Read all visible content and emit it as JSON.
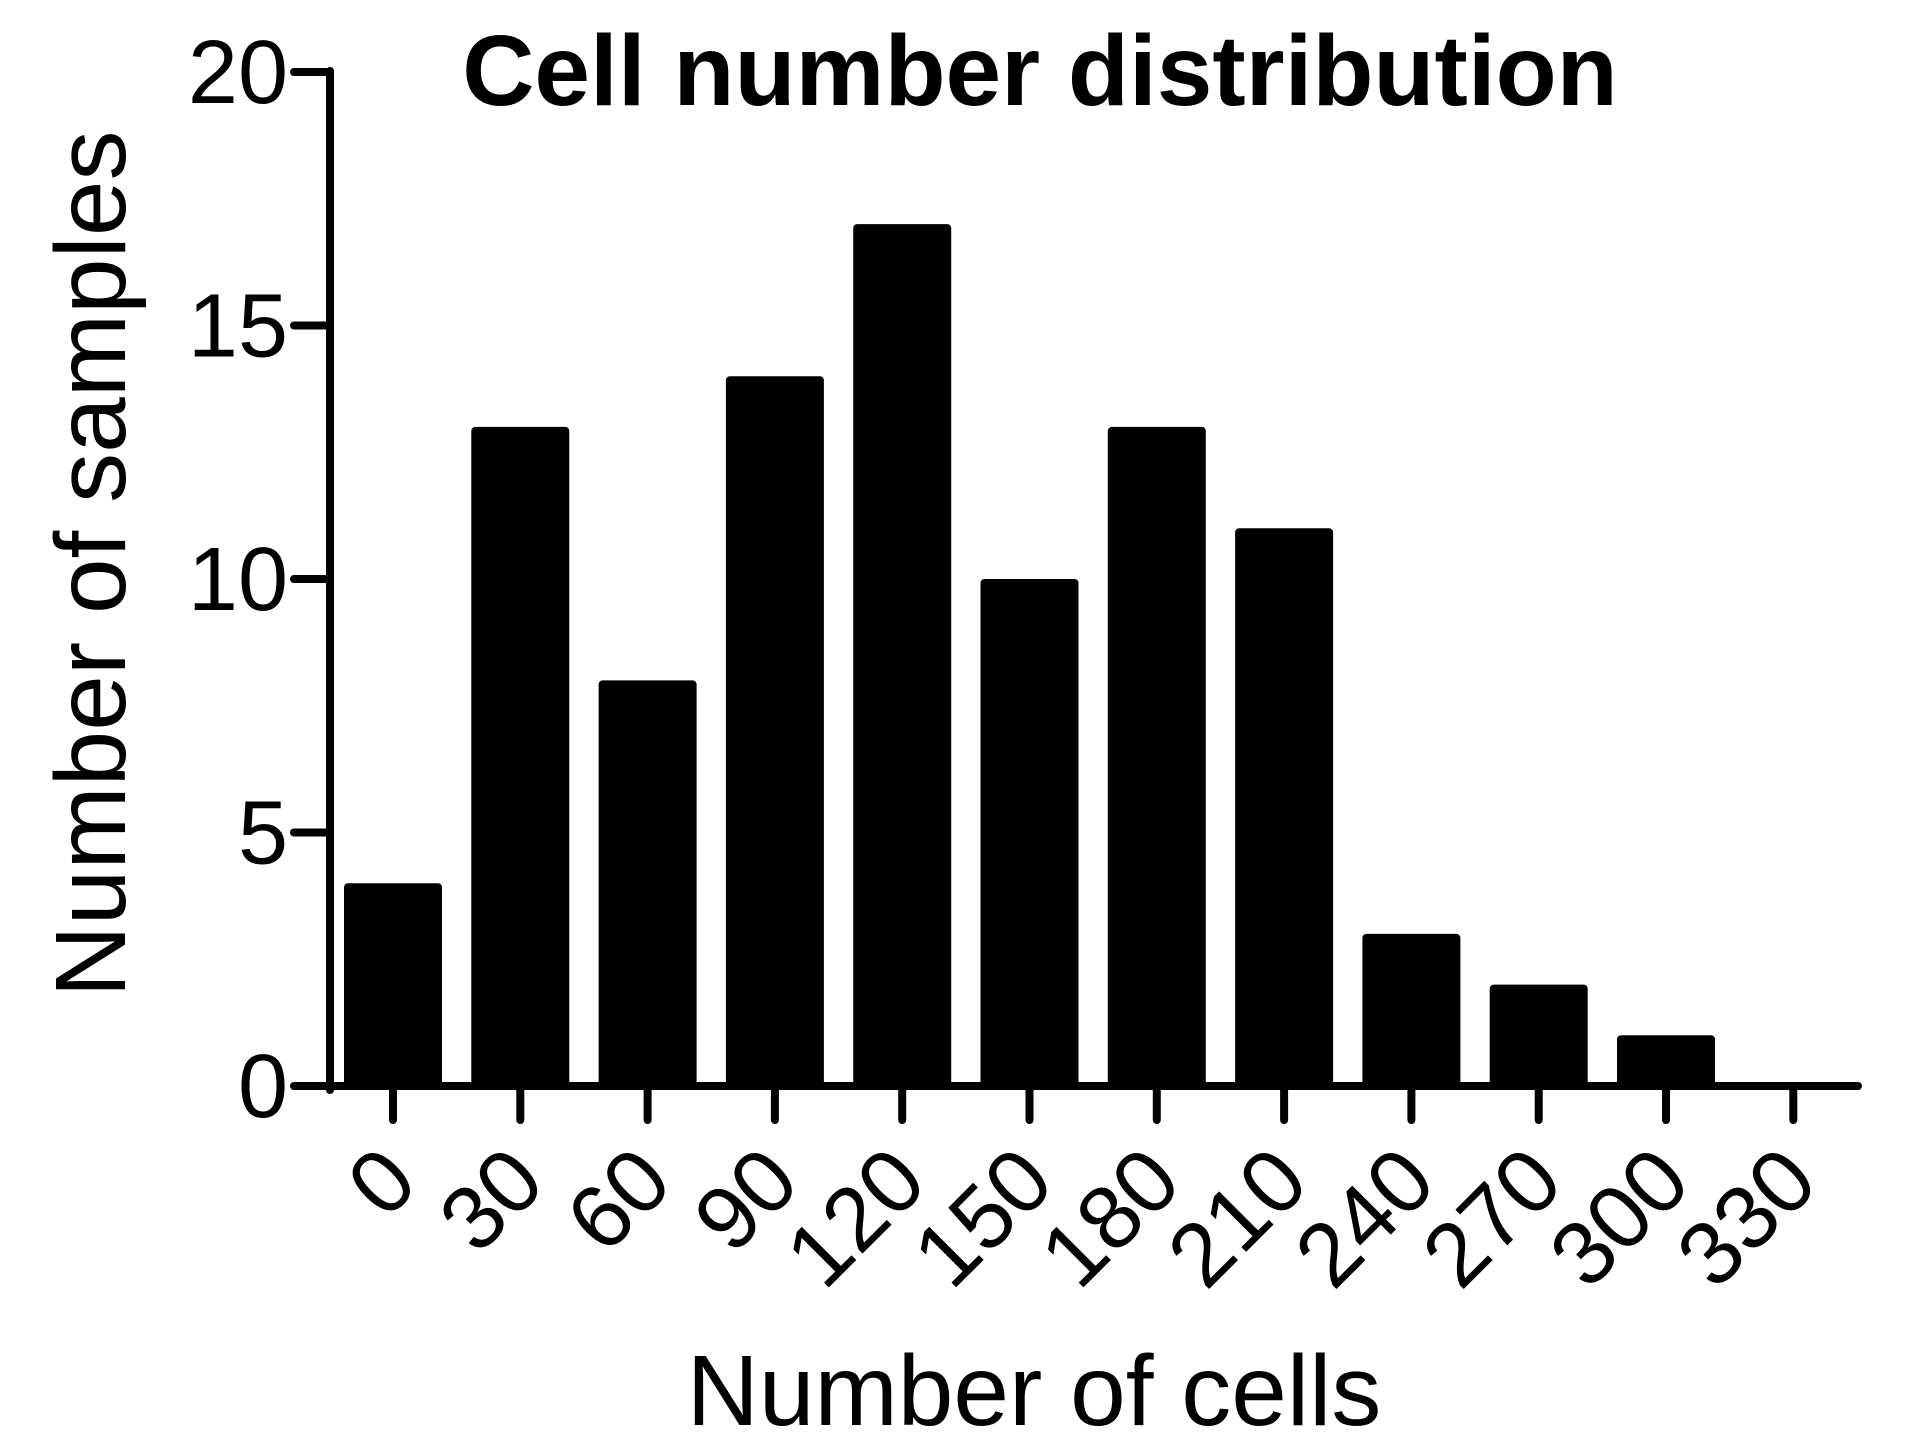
{
  "chart_data": {
    "type": "bar",
    "title": "Cell number distribution",
    "xlabel": "Number of cells",
    "ylabel": "Number of samples",
    "categories": [
      "0",
      "30",
      "60",
      "90",
      "120",
      "150",
      "180",
      "210",
      "240",
      "270",
      "300",
      "330"
    ],
    "values": [
      4,
      13,
      8,
      14,
      17,
      10,
      13,
      11,
      3,
      2,
      1,
      0
    ],
    "ylim": [
      0,
      20
    ],
    "yticks": [
      0,
      5,
      10,
      15,
      20
    ],
    "grid": false,
    "legend": "none",
    "bar_color": "#000000",
    "axis_color": "#000000"
  }
}
